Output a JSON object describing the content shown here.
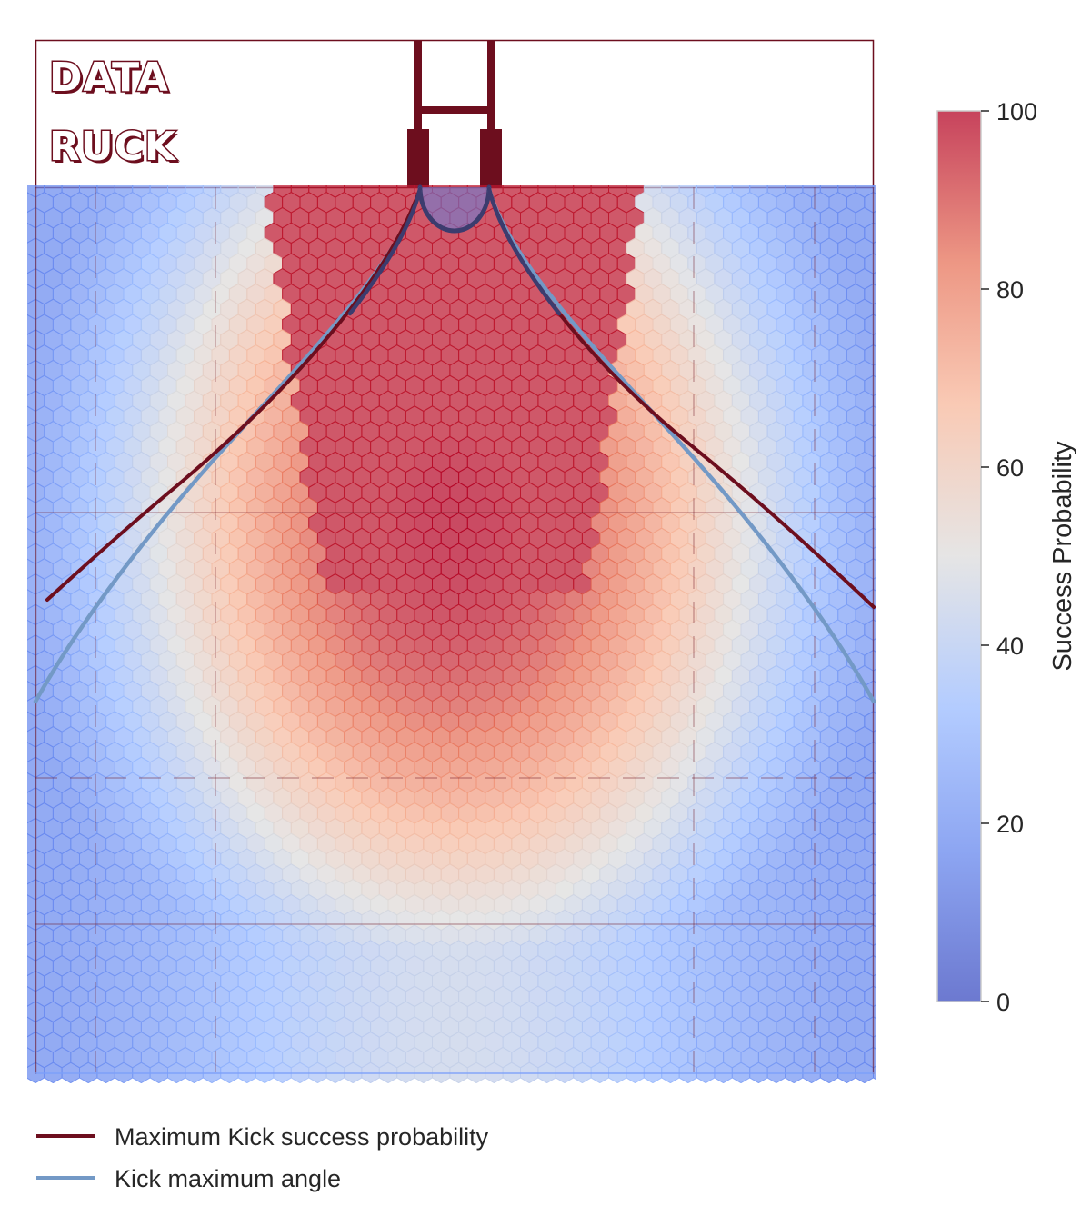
{
  "logo": {
    "line1": "DATA",
    "line2": "RUCK"
  },
  "chart_data": {
    "type": "heatmap",
    "title": "",
    "description_grid": "hexbin",
    "colormap": "coolwarm",
    "colormap_stops": [
      "#3b4cc0",
      "#7b9ff9",
      "#c0d4f5",
      "#dddddd",
      "#f2cbb7",
      "#ee8468",
      "#b40426"
    ],
    "value_model": {
      "peak_value": 100,
      "peak_position": "just in front of the posts, centred",
      "near_posts": 98,
      "halfway_centre": 55,
      "bottom_centre": 43,
      "far_touchline_corners": 15
    },
    "colorbar": {
      "label": "Success Probability",
      "range": [
        0,
        100
      ],
      "ticks": [
        0,
        20,
        40,
        60,
        80,
        100
      ],
      "tick_labels": [
        "0",
        "20",
        "40",
        "60",
        "80",
        "100"
      ]
    },
    "series": [
      {
        "name": "Maximum Kick success probability",
        "color": "#6d0e1e",
        "shape": "curve from left post fanning out to touchlines",
        "left_end_depth_fraction": 0.465,
        "right_end_depth_fraction": 0.473
      },
      {
        "name": "Kick maximum angle",
        "color": "#7399c6",
        "shape": "near-straight lines from posts fanning out to touchlines",
        "left_end_depth_fraction": 0.58,
        "right_end_depth_fraction": 0.58
      }
    ],
    "legend": {
      "placement": "bottom-left",
      "entries": [
        {
          "label": "Maximum Kick success probability",
          "color": "#6d0e1e"
        },
        {
          "label": "Kick maximum angle",
          "color": "#7399c6"
        }
      ]
    },
    "pitch": {
      "line_color": "#6d0e1e",
      "goal_area_color": "#ffffff",
      "dashed_markings": true
    }
  }
}
